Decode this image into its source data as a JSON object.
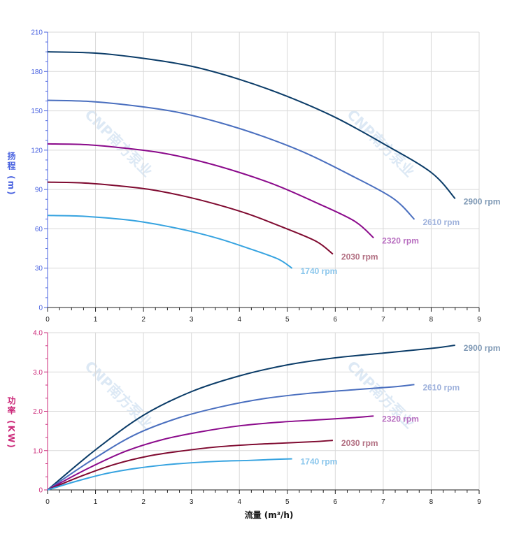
{
  "watermark": "CNP南方泵业",
  "chart_data": [
    {
      "type": "line",
      "title": "",
      "ylabel": "扬程 (m)",
      "xlabel": "",
      "xlim": [
        0,
        9
      ],
      "ylim": [
        0,
        210
      ],
      "xticks": [
        0,
        1,
        2,
        3,
        4,
        5,
        6,
        7,
        8,
        9
      ],
      "yticks": [
        0,
        30,
        60,
        90,
        120,
        150,
        180,
        210
      ],
      "grid": true,
      "axis_color": "#4a63e0",
      "series": [
        {
          "name": "2900 rpm",
          "color": "#0b3c68",
          "label_color": "#7f99b5",
          "x": [
            0,
            1,
            2,
            3,
            4,
            5,
            6,
            7,
            8,
            8.5
          ],
          "y": [
            195,
            194,
            190,
            184,
            174,
            161,
            145,
            125,
            103,
            83
          ]
        },
        {
          "name": "2610 rpm",
          "color": "#4a6fbf",
          "label_color": "#9fb2dc",
          "x": [
            0,
            0.9,
            1.8,
            2.7,
            3.6,
            4.5,
            5.4,
            6.3,
            7.2,
            7.65
          ],
          "y": [
            158,
            157.1,
            153.9,
            149,
            140.9,
            130.4,
            117.5,
            101.3,
            83.4,
            67.2
          ]
        },
        {
          "name": "2320 rpm",
          "color": "#8b0a8b",
          "label_color": "#b86fc0",
          "x": [
            0,
            0.8,
            1.6,
            2.4,
            3.2,
            4,
            4.8,
            5.6,
            6.4,
            6.8
          ],
          "y": [
            124.8,
            124.2,
            121.6,
            117.8,
            111.4,
            103,
            92.8,
            80,
            65.9,
            53.1
          ]
        },
        {
          "name": "2030 rpm",
          "color": "#7f0a30",
          "label_color": "#b26f82",
          "x": [
            0,
            0.7,
            1.4,
            2.1,
            2.8,
            3.5,
            4.2,
            4.9,
            5.6,
            5.95
          ],
          "y": [
            95.6,
            95.1,
            93.1,
            90.2,
            85.3,
            78.9,
            71.1,
            61.3,
            50.5,
            40.7
          ]
        },
        {
          "name": "1740 rpm",
          "color": "#36a3e0",
          "label_color": "#8ac6ec",
          "x": [
            0,
            0.6,
            1.2,
            1.8,
            2.4,
            3,
            3.6,
            4.2,
            4.8,
            5.1
          ],
          "y": [
            70.2,
            69.8,
            68.4,
            66.2,
            62.6,
            58,
            52.2,
            45,
            37.1,
            29.9
          ]
        }
      ]
    },
    {
      "type": "line",
      "title": "",
      "ylabel": "功率 (KW)",
      "xlabel": "流量 (m³/h)",
      "xlim": [
        0,
        9
      ],
      "ylim": [
        0,
        4
      ],
      "xticks": [
        0,
        1,
        2,
        3,
        4,
        5,
        6,
        7,
        8,
        9
      ],
      "yticks": [
        "0",
        "1.0",
        "2.0",
        "3.0",
        "4.0"
      ],
      "grid": true,
      "axis_color": "#cc2a7a",
      "series": [
        {
          "name": "2900 rpm",
          "color": "#0b3c68",
          "label_color": "#7f99b5",
          "x": [
            0,
            1,
            2,
            3,
            4,
            5,
            6,
            7,
            8,
            8.5
          ],
          "y": [
            0,
            1.02,
            1.9,
            2.5,
            2.9,
            3.18,
            3.36,
            3.48,
            3.6,
            3.68
          ]
        },
        {
          "name": "2610 rpm",
          "color": "#4a6fbf",
          "label_color": "#9fb2dc",
          "x": [
            0,
            0.9,
            1.8,
            2.7,
            3.6,
            4.5,
            5.4,
            6.3,
            7.2,
            7.65
          ],
          "y": [
            0,
            0.74,
            1.39,
            1.82,
            2.11,
            2.32,
            2.45,
            2.54,
            2.62,
            2.68
          ]
        },
        {
          "name": "2320 rpm",
          "color": "#8b0a8b",
          "label_color": "#b86fc0",
          "x": [
            0,
            0.8,
            1.6,
            2.4,
            3.2,
            4,
            4.8,
            5.6,
            6.4,
            6.8
          ],
          "y": [
            0,
            0.52,
            0.97,
            1.28,
            1.48,
            1.63,
            1.72,
            1.78,
            1.84,
            1.88
          ]
        },
        {
          "name": "2030 rpm",
          "color": "#7f0a30",
          "label_color": "#b26f82",
          "x": [
            0,
            0.7,
            1.4,
            2.1,
            2.8,
            3.5,
            4.2,
            4.9,
            5.6,
            5.95
          ],
          "y": [
            0,
            0.35,
            0.65,
            0.86,
            0.99,
            1.09,
            1.15,
            1.19,
            1.23,
            1.26
          ]
        },
        {
          "name": "1740 rpm",
          "color": "#36a3e0",
          "label_color": "#8ac6ec",
          "x": [
            0,
            0.6,
            1.2,
            1.8,
            2.4,
            3,
            3.6,
            4.2,
            4.8,
            5.1
          ],
          "y": [
            0,
            0.22,
            0.41,
            0.54,
            0.63,
            0.69,
            0.73,
            0.75,
            0.78,
            0.79
          ]
        }
      ]
    }
  ]
}
